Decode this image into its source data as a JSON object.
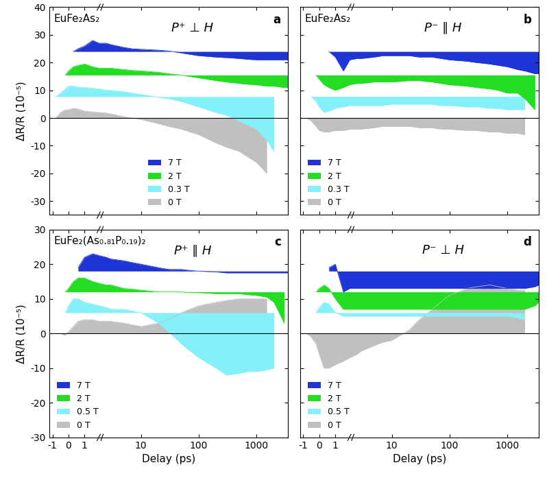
{
  "chart_data": [
    {
      "type": "area",
      "title": "P⁺ ⊥ H",
      "annotations": [
        "EuFe₂As₂",
        "a"
      ],
      "y_label": "ΔR/R (10⁻⁵)",
      "log": "x",
      "legend": "lower center",
      "tick_labels": "y",
      "xlim": [
        -1.2,
        3500
      ],
      "xticks": [
        -1,
        0,
        1,
        10,
        100,
        1000
      ],
      "ylim": [
        -35,
        40
      ],
      "yticks": [
        -30,
        -20,
        -10,
        0,
        10,
        20,
        30,
        40
      ],
      "x": [
        -0.8,
        -0.5,
        -0.2,
        0,
        0.3,
        0.6,
        1,
        1.5,
        1.9,
        2.5,
        3,
        5,
        7,
        10,
        20,
        30,
        50,
        70,
        100,
        200,
        300,
        500,
        700,
        1000,
        1500,
        2000,
        3000,
        3500
      ],
      "series": [
        {
          "name": "7 T",
          "color": "#1f35d6",
          "baseline": 24,
          "values": [
            null,
            null,
            null,
            null,
            24,
            25,
            26,
            28,
            27,
            27,
            26.5,
            25.5,
            25,
            24.8,
            24.5,
            24.2,
            23.5,
            23,
            22.5,
            22,
            21.8,
            21.5,
            21.2,
            21,
            21,
            21,
            21,
            21
          ]
        },
        {
          "name": "2 T",
          "color": "#22dd22",
          "baseline": 15.5,
          "values": [
            null,
            null,
            15.5,
            17,
            18.5,
            19,
            19.5,
            18.5,
            18,
            18,
            18,
            17.5,
            17.2,
            17,
            16.5,
            16,
            15.5,
            15,
            14.5,
            13.5,
            13,
            12.5,
            12.2,
            12,
            11.5,
            11.5,
            11,
            11
          ]
        },
        {
          "name": "0.3 T",
          "color": "#86f0f8",
          "baseline": 7.7,
          "values": [
            7.7,
            9,
            10.5,
            11.5,
            11.5,
            11.2,
            11,
            10.8,
            10.5,
            10,
            10,
            9.5,
            9,
            8.5,
            7.5,
            7,
            6,
            5,
            4,
            2,
            1,
            -1,
            -2.5,
            -4,
            -8,
            -12,
            null,
            null
          ]
        },
        {
          "name": "0 T",
          "color": "#c0c0c0",
          "baseline": 0,
          "values": [
            0,
            2,
            3,
            3,
            3.5,
            3.2,
            2.5,
            2.2,
            2,
            1.8,
            1.5,
            0.5,
            0,
            -0.5,
            -2,
            -3,
            -4,
            -5,
            -6,
            -9,
            -10.5,
            -12,
            -14,
            -16,
            -20,
            null,
            null,
            null
          ]
        }
      ]
    },
    {
      "type": "area",
      "title": "P⁻ ∥ H",
      "annotations": [
        "EuFe₂As₂",
        "b"
      ],
      "log": "x",
      "legend": "lower left",
      "tick_labels": false,
      "xlim": [
        -1.2,
        3500
      ],
      "xticks": [
        -1,
        0,
        1,
        10,
        100,
        1000
      ],
      "ylim": [
        -35,
        40
      ],
      "yticks": [
        -30,
        -20,
        -10,
        0,
        10,
        20,
        30,
        40
      ],
      "x": [
        -0.8,
        -0.5,
        -0.2,
        0,
        0.3,
        0.6,
        1,
        1.5,
        1.9,
        2.5,
        3,
        5,
        7,
        10,
        20,
        30,
        50,
        70,
        100,
        200,
        300,
        500,
        700,
        1000,
        1500,
        2000,
        3000,
        3500
      ],
      "series": [
        {
          "name": "7 T",
          "color": "#1f35d6",
          "baseline": 24,
          "values": [
            null,
            null,
            null,
            null,
            null,
            24,
            22,
            17,
            21,
            21.5,
            21.5,
            22,
            22.5,
            22.5,
            22.5,
            22,
            22,
            21.5,
            21,
            20.5,
            20,
            19.5,
            19,
            18.5,
            17.5,
            17,
            16,
            16
          ]
        },
        {
          "name": "2 T",
          "color": "#22dd22",
          "baseline": 15.5,
          "values": [
            null,
            null,
            15.5,
            14,
            12,
            11,
            10,
            11,
            12,
            12.5,
            12.5,
            13,
            13,
            13,
            13.5,
            13.5,
            13,
            12.5,
            12,
            11.5,
            11,
            10.5,
            10,
            9,
            9,
            7,
            3,
            null
          ]
        },
        {
          "name": "0.3 T",
          "color": "#86f0f8",
          "baseline": 7.8,
          "values": [
            null,
            7.8,
            6,
            4,
            2,
            2.5,
            3.5,
            4,
            4.5,
            4.5,
            4.5,
            4.5,
            4.5,
            5,
            5,
            5,
            5,
            4.5,
            4.5,
            4,
            4,
            3.5,
            3.5,
            3,
            3,
            3,
            null,
            null
          ]
        },
        {
          "name": "0 T",
          "color": "#c0c0c0",
          "baseline": 0,
          "values": [
            0,
            -1,
            -3,
            -4.5,
            -5,
            -5,
            -4.5,
            -4.5,
            -4,
            -4,
            -4,
            -3.5,
            -3,
            -3,
            -3,
            -3.5,
            -3.5,
            -4,
            -4,
            -4.5,
            -4.5,
            -5,
            -5,
            -5.5,
            -5.5,
            -6,
            null,
            null
          ]
        }
      ]
    },
    {
      "type": "area",
      "title": "P⁺ ∥ H",
      "annotations": [
        "EuFe₂(As₀.₈₁P₀.₁₉)₂",
        "c"
      ],
      "y_label": "ΔR/R (10⁻⁵)",
      "x_label": "Delay (ps)",
      "log": "x",
      "legend": "lower left",
      "tick_labels": true,
      "xlim": [
        -1.2,
        3500
      ],
      "xticks": [
        -1,
        0,
        1,
        10,
        100,
        1000
      ],
      "ylim": [
        -30,
        30
      ],
      "yticks": [
        -30,
        -20,
        -10,
        0,
        10,
        20,
        30
      ],
      "x": [
        -0.8,
        -0.5,
        -0.2,
        0,
        0.3,
        0.6,
        1,
        1.5,
        1.9,
        2.5,
        3,
        5,
        7,
        10,
        20,
        30,
        50,
        70,
        100,
        200,
        300,
        500,
        700,
        1000,
        1500,
        2000,
        3000,
        3500
      ],
      "series": [
        {
          "name": "7 T",
          "color": "#1f35d6",
          "baseline": 18,
          "values": [
            null,
            null,
            null,
            null,
            null,
            19,
            22,
            23,
            22.5,
            22,
            21.5,
            21,
            20.5,
            20,
            19,
            18.5,
            18.5,
            18.2,
            18,
            17.8,
            17.5,
            17.5,
            17.5,
            17.5,
            17.5,
            17.5,
            17.5,
            17.5
          ]
        },
        {
          "name": "2 T",
          "color": "#22dd22",
          "baseline": 12,
          "values": [
            null,
            null,
            12,
            13,
            15,
            16,
            16,
            15,
            14.5,
            14,
            14,
            13,
            12.8,
            12.5,
            12,
            12,
            12,
            11.8,
            11.8,
            11.5,
            11.5,
            11.5,
            11.2,
            11,
            10.5,
            9,
            3,
            null
          ]
        },
        {
          "name": "0.5 T",
          "color": "#86f0f8",
          "baseline": 6,
          "values": [
            null,
            null,
            6,
            8,
            10,
            10,
            9,
            8.5,
            8,
            7.5,
            7,
            7,
            6.5,
            6,
            3,
            0.5,
            -3,
            -5,
            -7,
            -10,
            -12,
            -11.5,
            -11,
            -11,
            -10.5,
            -10,
            null,
            null
          ]
        },
        {
          "name": "0 T",
          "color": "#c0c0c0",
          "baseline": 0,
          "values": [
            0,
            0,
            -0.5,
            0.5,
            2,
            3.5,
            4,
            4,
            3.5,
            3.5,
            3.5,
            3,
            2.5,
            2,
            3,
            4,
            6,
            7,
            8,
            9,
            9.5,
            10,
            10,
            10,
            10,
            null,
            null,
            null
          ]
        }
      ]
    },
    {
      "type": "area",
      "title": "P⁻ ⊥ H",
      "annotations": [
        "",
        "d"
      ],
      "x_label": "Delay (ps)",
      "log": "x",
      "legend": "lower left",
      "tick_labels": "x",
      "xlim": [
        -1.2,
        3500
      ],
      "xticks": [
        -1,
        0,
        1,
        10,
        100,
        1000
      ],
      "ylim": [
        -30,
        30
      ],
      "yticks": [
        -30,
        -20,
        -10,
        0,
        10,
        20,
        30
      ],
      "x": [
        -0.8,
        -0.5,
        -0.2,
        0,
        0.3,
        0.6,
        1,
        1.5,
        1.9,
        2.5,
        3,
        5,
        7,
        10,
        20,
        30,
        50,
        70,
        100,
        200,
        300,
        500,
        700,
        1000,
        1500,
        2000,
        3000,
        3500
      ],
      "series": [
        {
          "name": "7 T",
          "color": "#1f35d6",
          "baseline": 18,
          "values": [
            null,
            null,
            null,
            null,
            null,
            19,
            20,
            12,
            13,
            13,
            13,
            13,
            13,
            13,
            13,
            13,
            13,
            13,
            13,
            13,
            13,
            13,
            13,
            13,
            13,
            13,
            13.5,
            14
          ]
        },
        {
          "name": "2 T",
          "color": "#22dd22",
          "baseline": 12,
          "values": [
            null,
            null,
            12,
            13,
            14,
            13,
            10,
            7,
            7,
            7,
            7,
            7,
            7,
            7,
            7,
            7,
            7,
            7,
            7,
            7,
            7,
            7,
            7,
            7,
            7,
            7,
            8,
            9
          ]
        },
        {
          "name": "0.5 T",
          "color": "#86f0f8",
          "baseline": 6,
          "values": [
            null,
            null,
            6,
            7.5,
            9,
            8.5,
            6,
            5,
            5,
            5,
            5,
            5,
            5,
            5,
            5,
            5,
            5,
            5,
            5,
            5,
            5,
            5,
            5,
            5,
            4.5,
            4,
            null,
            null
          ]
        },
        {
          "name": "0 T",
          "color": "#c0c0c0",
          "baseline": 0,
          "values": [
            0,
            -1,
            -3,
            -6,
            -10,
            -10,
            -9,
            -8,
            -7,
            -6,
            -5,
            -3.5,
            -2.5,
            -2,
            1,
            4,
            7,
            9,
            11,
            13,
            13.5,
            14,
            13.5,
            13,
            12.5,
            12.5,
            null,
            null
          ]
        }
      ]
    }
  ]
}
